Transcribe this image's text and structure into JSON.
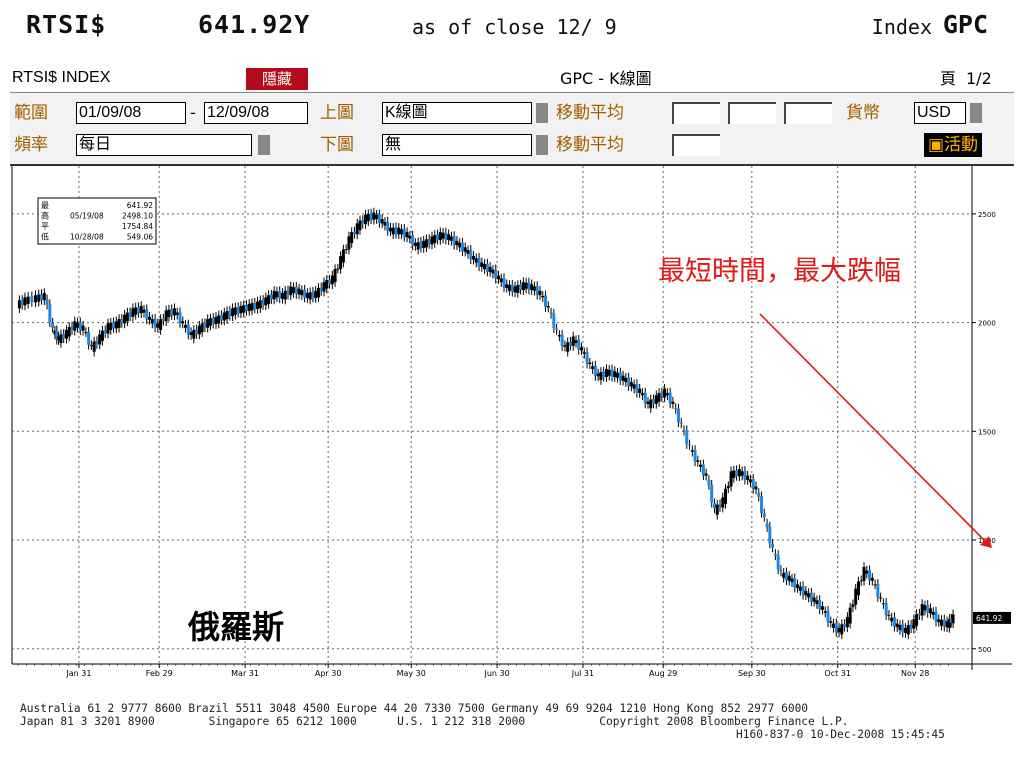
{
  "header": {
    "ticker": "RTSI$",
    "value": "641.92Y",
    "as_of": "as of close 12/ 9",
    "index_label": "Index",
    "index_code": "GPC"
  },
  "panel": {
    "security": "RTSI$ INDEX",
    "hide_button": "隱藏",
    "chart_title": "GPC - K線圖",
    "page_label": "頁",
    "page_value": "1/2",
    "range_label": "範圍",
    "date_from": "01/09/08",
    "dash": "-",
    "date_to": "12/09/08",
    "upper_label": "上圖",
    "upper_value": "K線圖",
    "ma_label_1": "移動平均",
    "currency_label": "貨幣",
    "currency_value": "USD",
    "freq_label": "頻率",
    "freq_value": "每日",
    "lower_label": "下圖",
    "lower_value": "無",
    "ma_label_2": "移動平均",
    "active_button": "活動"
  },
  "chart_data": {
    "type": "line",
    "title": "",
    "xlabel": "",
    "ylabel": "",
    "ylim": [
      430,
      2720
    ],
    "yticks": [
      500,
      1000,
      1500,
      2000,
      2500
    ],
    "ytick_labels": [
      "500",
      "1000",
      "1500",
      "2000",
      "2500"
    ],
    "x_tick_labels": [
      "Jan 31",
      "Feb 29",
      "Mar 31",
      "Apr 30",
      "May 30",
      "Jun 30",
      "Jul 31",
      "Aug 29",
      "Sep 30",
      "Oct 31",
      "Nov 28"
    ],
    "x_tick_days": [
      31,
      60,
      91,
      121,
      151,
      182,
      213,
      242,
      274,
      305,
      333
    ],
    "x_range_days": [
      9,
      347
    ],
    "last_value_label": "641.92",
    "legend_box": {
      "lines": [
        {
          "icon": "最",
          "date": "",
          "value": "641.92"
        },
        {
          "icon": "高",
          "date": "05/19/08",
          "value": "2498.10"
        },
        {
          "icon": "平",
          "date": "",
          "value": "1754.84"
        },
        {
          "icon": "低",
          "date": "10/28/08",
          "value": "549.06"
        }
      ]
    },
    "annotation": "最短時間，最大跌幅",
    "country_label": "俄羅斯",
    "series": [
      {
        "values": [
          [
            9,
            2080
          ],
          [
            12,
            2100
          ],
          [
            16,
            2110
          ],
          [
            19,
            2120
          ],
          [
            22,
            1960
          ],
          [
            24,
            1920
          ],
          [
            27,
            1950
          ],
          [
            30,
            1990
          ],
          [
            33,
            1970
          ],
          [
            36,
            1880
          ],
          [
            39,
            1930
          ],
          [
            42,
            1980
          ],
          [
            45,
            1990
          ],
          [
            48,
            2020
          ],
          [
            51,
            2050
          ],
          [
            54,
            2060
          ],
          [
            57,
            2010
          ],
          [
            60,
            1980
          ],
          [
            63,
            2040
          ],
          [
            66,
            2050
          ],
          [
            69,
            1990
          ],
          [
            72,
            1940
          ],
          [
            75,
            1970
          ],
          [
            78,
            2000
          ],
          [
            81,
            2010
          ],
          [
            84,
            2030
          ],
          [
            87,
            2050
          ],
          [
            90,
            2060
          ],
          [
            93,
            2070
          ],
          [
            96,
            2080
          ],
          [
            99,
            2100
          ],
          [
            102,
            2130
          ],
          [
            105,
            2120
          ],
          [
            108,
            2150
          ],
          [
            111,
            2140
          ],
          [
            114,
            2120
          ],
          [
            117,
            2130
          ],
          [
            120,
            2170
          ],
          [
            123,
            2200
          ],
          [
            126,
            2290
          ],
          [
            129,
            2380
          ],
          [
            132,
            2440
          ],
          [
            135,
            2480
          ],
          [
            138,
            2490
          ],
          [
            141,
            2460
          ],
          [
            144,
            2420
          ],
          [
            147,
            2420
          ],
          [
            150,
            2400
          ],
          [
            153,
            2350
          ],
          [
            156,
            2360
          ],
          [
            159,
            2380
          ],
          [
            162,
            2400
          ],
          [
            165,
            2390
          ],
          [
            168,
            2360
          ],
          [
            171,
            2330
          ],
          [
            174,
            2290
          ],
          [
            177,
            2260
          ],
          [
            180,
            2240
          ],
          [
            183,
            2200
          ],
          [
            186,
            2160
          ],
          [
            189,
            2150
          ],
          [
            192,
            2170
          ],
          [
            195,
            2160
          ],
          [
            198,
            2130
          ],
          [
            201,
            2060
          ],
          [
            204,
            1950
          ],
          [
            207,
            1880
          ],
          [
            210,
            1920
          ],
          [
            213,
            1870
          ],
          [
            216,
            1800
          ],
          [
            219,
            1750
          ],
          [
            222,
            1770
          ],
          [
            225,
            1760
          ],
          [
            228,
            1740
          ],
          [
            231,
            1710
          ],
          [
            234,
            1680
          ],
          [
            237,
            1620
          ],
          [
            240,
            1650
          ],
          [
            243,
            1680
          ],
          [
            246,
            1620
          ],
          [
            249,
            1520
          ],
          [
            252,
            1420
          ],
          [
            255,
            1350
          ],
          [
            258,
            1290
          ],
          [
            261,
            1130
          ],
          [
            264,
            1180
          ],
          [
            267,
            1300
          ],
          [
            270,
            1310
          ],
          [
            273,
            1280
          ],
          [
            276,
            1230
          ],
          [
            279,
            1090
          ],
          [
            282,
            950
          ],
          [
            285,
            840
          ],
          [
            288,
            820
          ],
          [
            291,
            780
          ],
          [
            294,
            750
          ],
          [
            297,
            720
          ],
          [
            300,
            680
          ],
          [
            303,
            610
          ],
          [
            306,
            580
          ],
          [
            309,
            630
          ],
          [
            312,
            760
          ],
          [
            315,
            860
          ],
          [
            318,
            810
          ],
          [
            321,
            720
          ],
          [
            324,
            640
          ],
          [
            327,
            600
          ],
          [
            330,
            580
          ],
          [
            333,
            620
          ],
          [
            336,
            690
          ],
          [
            339,
            670
          ],
          [
            342,
            620
          ],
          [
            345,
            610
          ],
          [
            347,
            642
          ]
        ]
      }
    ]
  },
  "footer": {
    "line1": "Australia 61 2 9777 8600 Brazil 5511 3048 4500 Europe 44 20 7330 7500 Germany 49 69 9204 1210 Hong Kong 852 2977 6000",
    "line2": "Japan 81 3 3201 8900        Singapore 65 6212 1000      U.S. 1 212 318 2000           Copyright 2008 Bloomberg Finance L.P.",
    "line3": "H160-837-0 10-Dec-2008 15:45:45"
  }
}
